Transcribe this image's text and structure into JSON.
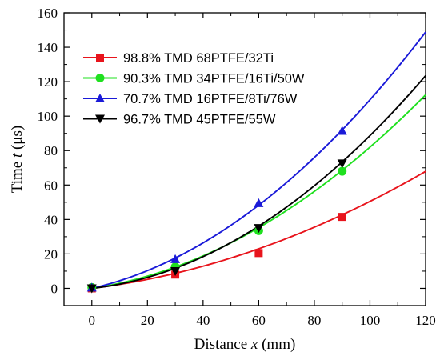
{
  "chart_data": {
    "type": "scatter",
    "xlabel_prefix": "Distance ",
    "xlabel_var": "x",
    "xlabel_unit": " (mm)",
    "ylabel_prefix": "Time ",
    "ylabel_var": "t",
    "ylabel_unit": " (μs)",
    "xlim": [
      -10,
      120
    ],
    "ylim": [
      -10,
      160
    ],
    "xticks": [
      0,
      20,
      40,
      60,
      80,
      100,
      120
    ],
    "yticks": [
      0,
      20,
      40,
      60,
      80,
      100,
      120,
      140,
      160
    ],
    "legend_position": "top-left",
    "grid": false,
    "series": [
      {
        "name": "98.8% TMD 68PTFE/32Ti",
        "color": "#e8141c",
        "marker": "square",
        "points": [
          [
            0,
            0
          ],
          [
            30,
            8
          ],
          [
            60,
            20.5
          ],
          [
            90,
            41.5
          ]
        ],
        "fit": [
          0,
          0.2,
          0.00305
        ]
      },
      {
        "name": "90.3% TMD 34PTFE/16Ti/50W",
        "color": "#1fe01f",
        "marker": "circle",
        "points": [
          [
            0,
            0.5
          ],
          [
            30,
            12.5
          ],
          [
            60,
            33.5
          ],
          [
            90,
            68
          ]
        ],
        "fit": [
          0,
          0.238,
          0.00582
        ]
      },
      {
        "name": "70.7% TMD 16PTFE/8Ti/76W",
        "color": "#1a1ad8",
        "marker": "triangle-up",
        "points": [
          [
            0,
            0.5
          ],
          [
            30,
            17
          ],
          [
            60,
            49.5
          ],
          [
            90,
            91.5
          ]
        ],
        "fit": [
          0,
          0.37,
          0.00725
        ]
      },
      {
        "name": "96.7% TMD 45PTFE/55W",
        "color": "#000000",
        "marker": "triangle-down",
        "points": [
          [
            0,
            0
          ],
          [
            30,
            10
          ],
          [
            60,
            35
          ],
          [
            90,
            72.5
          ]
        ],
        "fit": [
          0,
          0.176,
          0.00711
        ]
      }
    ]
  }
}
